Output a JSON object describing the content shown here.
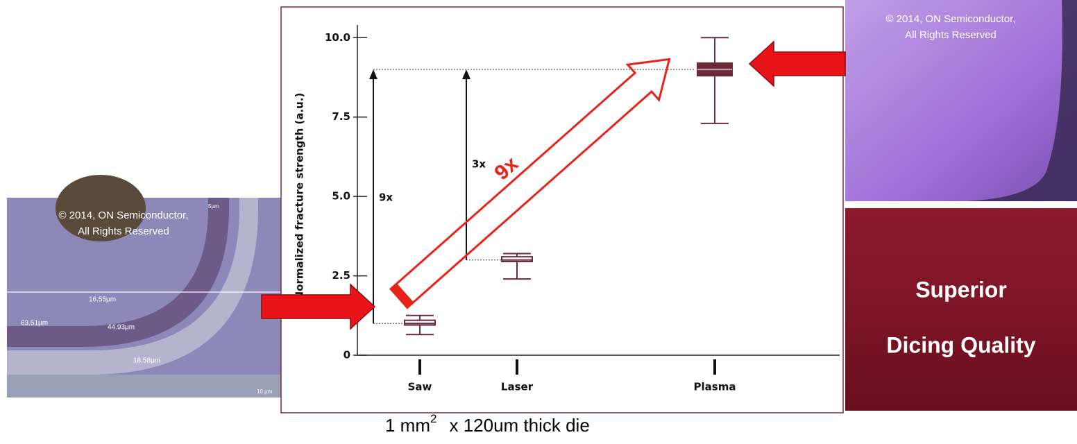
{
  "chart_data": {
    "type": "box",
    "y_label": "Normalized fracture strength (a.u.)",
    "categories": [
      "Saw",
      "Laser",
      "Plasma"
    ],
    "min": [
      0.65,
      2.4,
      7.3
    ],
    "q1": [
      0.95,
      2.95,
      8.8
    ],
    "median": [
      1.0,
      3.0,
      9.0
    ],
    "q3": [
      1.1,
      3.1,
      9.2
    ],
    "max": [
      1.25,
      3.2,
      10.0
    ],
    "color": "#6b2a3a",
    "ylim": [
      0,
      10.4
    ],
    "yticks": [
      0,
      {
        "value": 2.5,
        "label": "2.5"
      },
      {
        "value": 5,
        "label": "5.0"
      },
      {
        "value": 7.5,
        "label": "7.5"
      },
      {
        "value": 10,
        "label": "10.0"
      }
    ],
    "annotations": [
      {
        "text": "9x",
        "from": 1.0,
        "to": 9.0
      },
      {
        "text": "3x",
        "from": 3.0,
        "to": 9.0
      }
    ],
    "highlight": "9x"
  },
  "caption": {
    "main": "1 mm",
    "sup": "2",
    "rest": "x 120um thick die"
  },
  "left_image": {
    "copyright": "© 2014, ON Semiconductor,",
    "rights": "All Rights Reserved",
    "labels": [
      "16.55µm",
      "63.51µm",
      "44.93µm",
      "18.58µm",
      "10 µm",
      "5µm"
    ]
  },
  "right_image": {
    "copyright": "© 2014, ON Semiconductor,",
    "rights": "All Rights Reserved"
  },
  "panel": {
    "line1": "Superior",
    "line2": "Dicing Quality"
  }
}
